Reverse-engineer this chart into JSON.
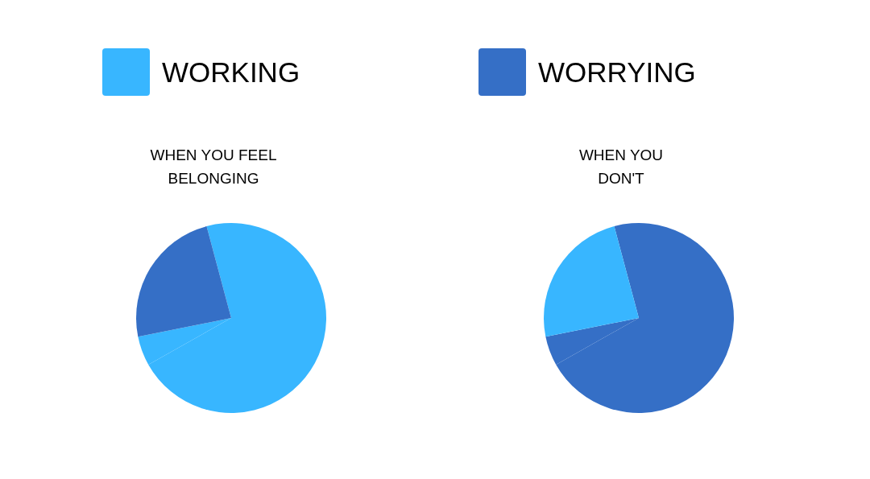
{
  "chart_data": [
    {
      "type": "pie",
      "title": "WHEN YOU FEEL\nBELONGING",
      "categories": [
        "WORKING",
        null,
        "WORRYING"
      ],
      "values": [
        71,
        5,
        24
      ],
      "colors": [
        "#38b6ff",
        "#38b6ff",
        "#356fc6"
      ],
      "legend": "top"
    },
    {
      "type": "pie",
      "title": "WHEN YOU\nDON'T",
      "categories": [
        null,
        null,
        null
      ],
      "values": [
        71,
        5,
        24
      ],
      "colors": [
        "#356fc6",
        "#356fc6",
        "#38b6ff"
      ]
    }
  ]
}
